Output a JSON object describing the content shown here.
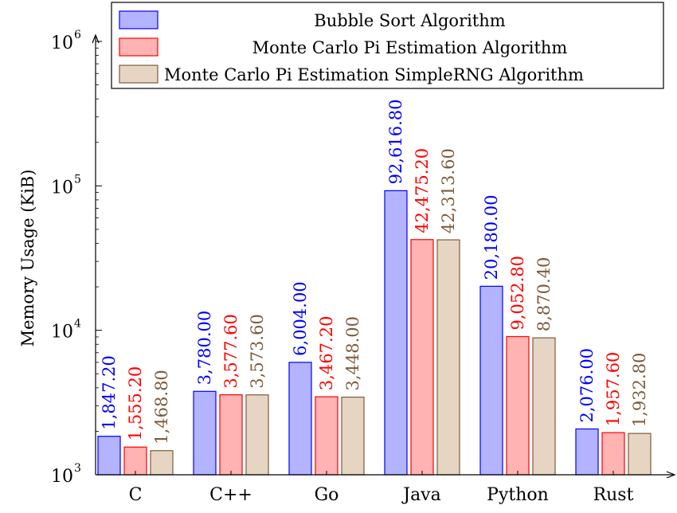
{
  "chart_data": {
    "type": "bar",
    "title": "",
    "xlabel": "",
    "ylabel": "Memory Usage (KiB)",
    "yscale": "log",
    "ylim": [
      1000,
      1000000
    ],
    "ytick_labels": [
      "10",
      "10",
      "10",
      "10"
    ],
    "ytick_exponents": [
      "3",
      "4",
      "5",
      "6"
    ],
    "ytick_values": [
      1000,
      10000,
      100000,
      1000000
    ],
    "categories": [
      "C",
      "C++",
      "Go",
      "Java",
      "Python",
      "Rust"
    ],
    "legend_position": "top-right",
    "series": [
      {
        "name": "Bubble Sort Algorithm",
        "fill": "#b3b3ff",
        "stroke": "#0000ff",
        "label_color": "#0000ff",
        "values": [
          1847.2,
          3780.0,
          6004.0,
          92616.8,
          20180.0,
          2076.0
        ],
        "labels": [
          "1,847.20",
          "3,780.00",
          "6,004.00",
          "92,616.80",
          "20,180.00",
          "2,076.00"
        ]
      },
      {
        "name": "Monte Carlo Pi Estimation Algorithm",
        "fill": "#ffb3b3",
        "stroke": "#ff0000",
        "label_color": "#ff0000",
        "values": [
          1555.2,
          3577.6,
          3467.2,
          42475.2,
          9052.8,
          1957.6
        ],
        "labels": [
          "1,555.20",
          "3,577.60",
          "3,467.20",
          "42,475.20",
          "9,052.80",
          "1,957.60"
        ]
      },
      {
        "name": "Monte Carlo Pi Estimation SimpleRNG Algorithm",
        "fill": "#e6d5c3",
        "stroke": "#7d5b3a",
        "label_color": "#7d5b3a",
        "values": [
          1468.8,
          3573.6,
          3448.0,
          42313.6,
          8870.4,
          1932.8
        ],
        "labels": [
          "1,468.80",
          "3,573.60",
          "3,448.00",
          "42,313.60",
          "8,870.40",
          "1,932.80"
        ]
      }
    ]
  }
}
